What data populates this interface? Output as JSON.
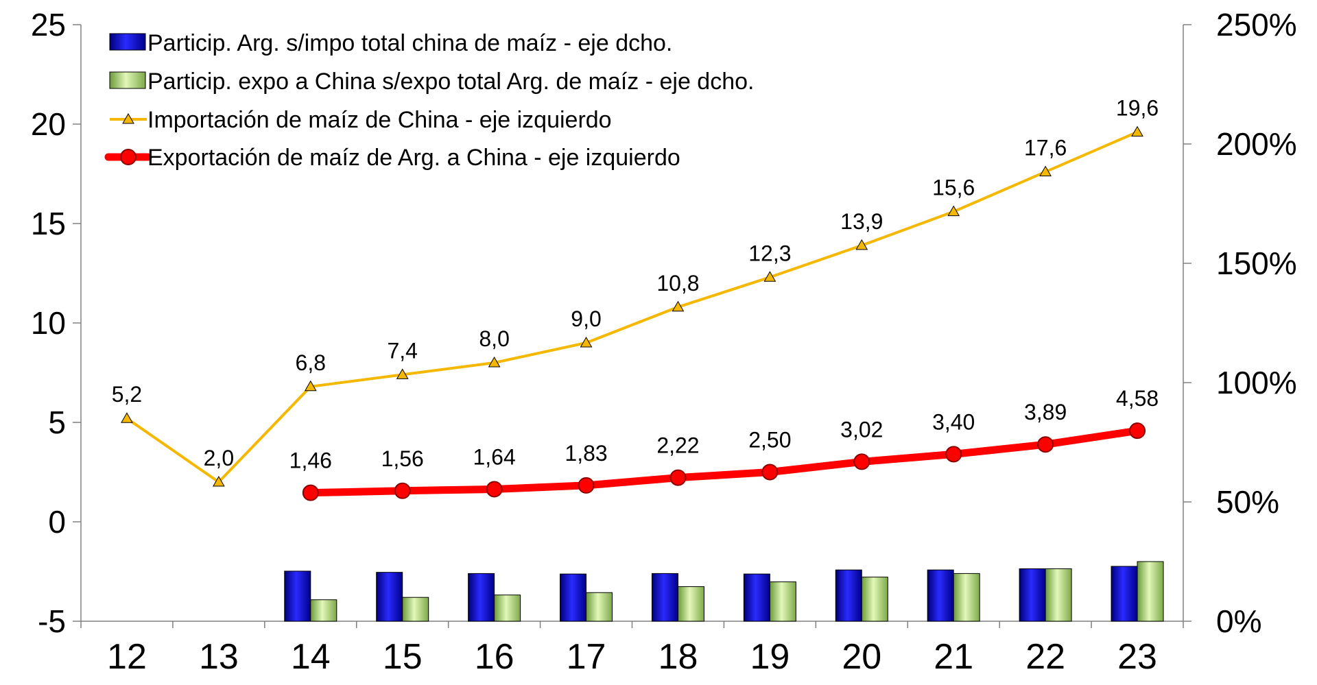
{
  "chart_data": {
    "type": "bar",
    "categories": [
      "12",
      "13",
      "14",
      "15",
      "16",
      "17",
      "18",
      "19",
      "20",
      "21",
      "22",
      "23"
    ],
    "left_axis": {
      "ylim": [
        -5,
        25
      ],
      "ticks": [
        "-5",
        "0",
        "5",
        "10",
        "15",
        "20",
        "25"
      ]
    },
    "right_axis": {
      "ylim": [
        0,
        2.5
      ],
      "ticks": [
        "0%",
        "50%",
        "100%",
        "150%",
        "200%",
        "250%"
      ]
    },
    "series": [
      {
        "name": "Particip. Arg. s/impo total china de maíz - eje dcho.",
        "type": "bar",
        "axis": "right",
        "color": "#1010d0",
        "values": [
          null,
          null,
          0.21,
          0.205,
          0.2,
          0.198,
          0.2,
          0.198,
          0.215,
          0.215,
          0.22,
          0.23
        ]
      },
      {
        "name": "Particip. expo a China s/expo total Arg. de maíz - eje dcho.",
        "type": "bar",
        "axis": "right",
        "color": "#b8e08c",
        "values": [
          null,
          null,
          0.09,
          0.1,
          0.11,
          0.12,
          0.145,
          0.165,
          0.185,
          0.2,
          0.22,
          0.25
        ]
      },
      {
        "name": "Importación de maíz de China - eje izquierdo",
        "type": "line",
        "axis": "left",
        "color": "#f5b800",
        "values": [
          5.2,
          2.0,
          6.8,
          7.4,
          8.0,
          9.0,
          10.8,
          12.3,
          13.9,
          15.6,
          17.6,
          19.6
        ],
        "labels": [
          "5,2",
          "2,0",
          "6,8",
          "7,4",
          "8,0",
          "9,0",
          "10,8",
          "12,3",
          "13,9",
          "15,6",
          "17,6",
          "19,6"
        ]
      },
      {
        "name": "Exportación de maíz de Arg. a China - eje izquierdo",
        "type": "line",
        "axis": "left",
        "color": "#ff0000",
        "values": [
          null,
          null,
          1.46,
          1.56,
          1.64,
          1.83,
          2.22,
          2.5,
          3.02,
          3.4,
          3.89,
          4.58
        ],
        "labels": [
          "",
          "",
          "1,46",
          "1,56",
          "1,64",
          "1,83",
          "2,22",
          "2,50",
          "3,02",
          "3,40",
          "3,89",
          "4,58"
        ]
      }
    ],
    "legend_position": "top-left",
    "grid": false
  }
}
